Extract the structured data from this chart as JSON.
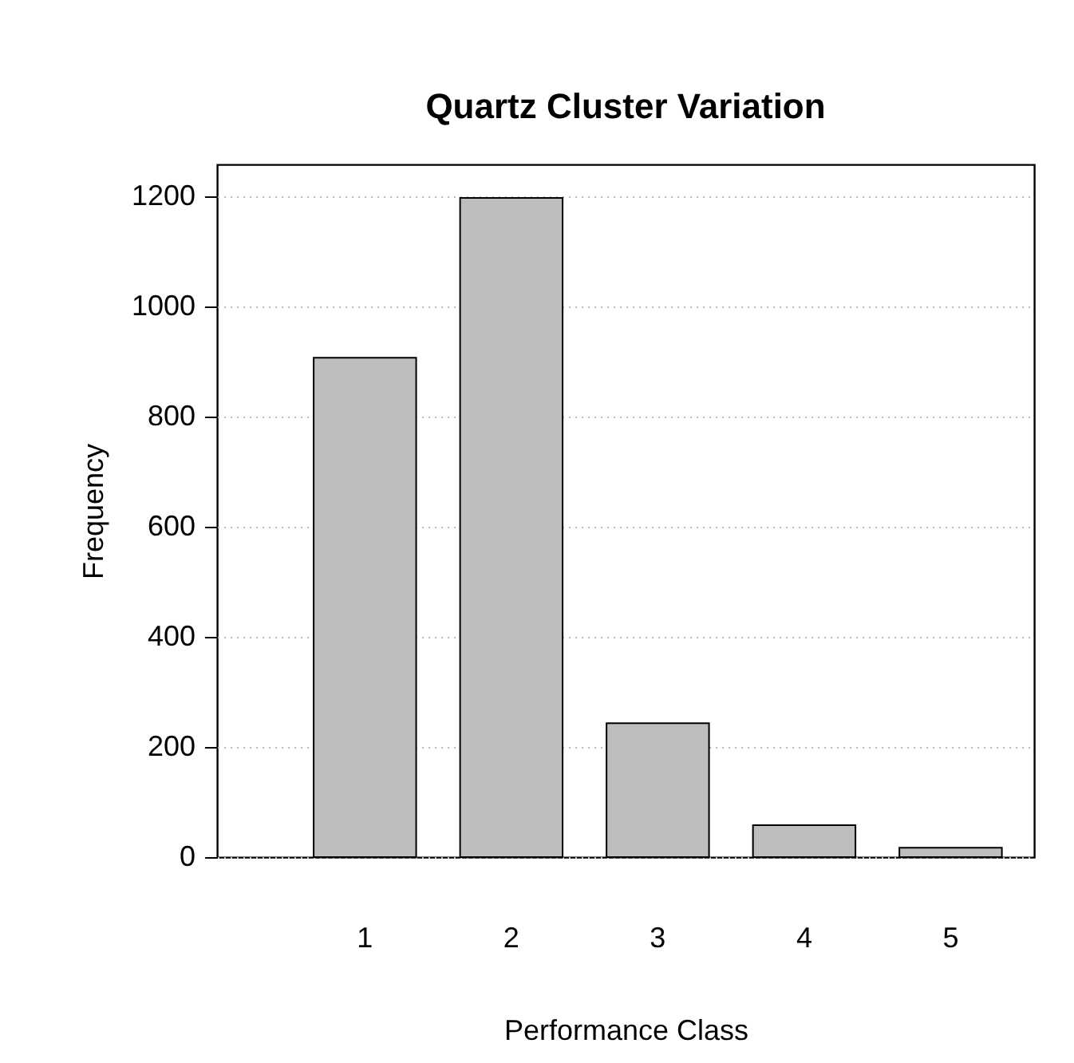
{
  "chart_data": {
    "type": "bar",
    "title": "Quartz Cluster Variation",
    "xlabel": "Performance Class",
    "ylabel": "Frequency",
    "categories": [
      "1",
      "2",
      "3",
      "4",
      "5"
    ],
    "values": [
      907,
      1197,
      243,
      58,
      17
    ],
    "color": "#bebebe",
    "ylim": [
      0,
      1258
    ],
    "yticks": [
      0,
      200,
      400,
      600,
      800,
      1000,
      1200
    ],
    "grid": "y"
  }
}
